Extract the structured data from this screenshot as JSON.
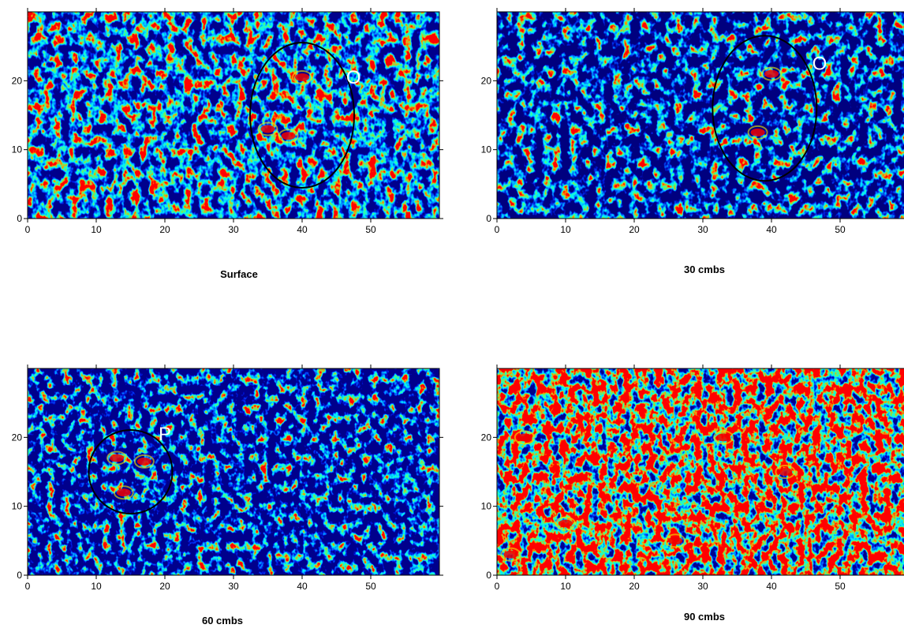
{
  "chart_data": [
    {
      "type": "heatmap",
      "title": "Surface",
      "annotation": "O",
      "xlim": [
        0,
        60
      ],
      "ylim": [
        0,
        30
      ],
      "xticks": [
        0,
        10,
        20,
        30,
        40,
        50
      ],
      "yticks": [
        0,
        10,
        20
      ]
    },
    {
      "type": "heatmap",
      "title": "30 cmbs",
      "annotation": "O",
      "xlim": [
        0,
        60
      ],
      "ylim": [
        0,
        30
      ],
      "xticks": [
        0,
        10,
        20,
        30,
        40,
        50
      ],
      "yticks": [
        0,
        10,
        20
      ]
    },
    {
      "type": "heatmap",
      "title": "60 cmbs",
      "annotation": "P",
      "xlim": [
        0,
        60
      ],
      "ylim": [
        0,
        30
      ],
      "xticks": [
        0,
        10,
        20,
        30,
        40,
        50
      ],
      "yticks": [
        0,
        10,
        20
      ]
    },
    {
      "type": "heatmap",
      "title": "90 cmbs",
      "xlim": [
        0,
        60
      ],
      "ylim": [
        0,
        30
      ],
      "xticks": [
        0,
        10,
        20,
        30,
        40,
        50
      ],
      "yticks": [
        0,
        10,
        20
      ]
    }
  ]
}
